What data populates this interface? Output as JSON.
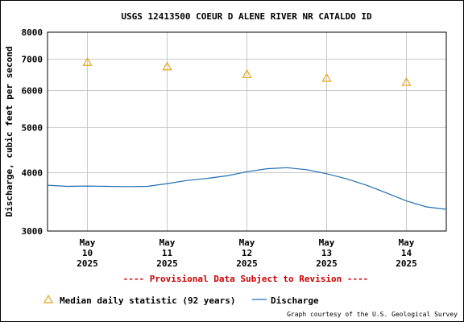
{
  "chart_data": {
    "type": "line",
    "title": "USGS 12413500 COEUR D ALENE RIVER NR CATALDO ID",
    "ylabel": "Discharge, cubic feet per second",
    "xlabel": "",
    "yscale": "log",
    "ylim": [
      3000,
      8000
    ],
    "y_ticks": [
      {
        "value": 3000,
        "label": "3000"
      },
      {
        "value": 4000,
        "label": "4000"
      },
      {
        "value": 5000,
        "label": "5000"
      },
      {
        "value": 6000,
        "label": "6000"
      },
      {
        "value": 7000,
        "label": "7000"
      },
      {
        "value": 8000,
        "label": "8000"
      }
    ],
    "x_ticks": [
      {
        "date": "2025-05-10",
        "month": "May",
        "day": "10",
        "year": "2025"
      },
      {
        "date": "2025-05-11",
        "month": "May",
        "day": "11",
        "year": "2025"
      },
      {
        "date": "2025-05-12",
        "month": "May",
        "day": "12",
        "year": "2025"
      },
      {
        "date": "2025-05-13",
        "month": "May",
        "day": "13",
        "year": "2025"
      },
      {
        "date": "2025-05-14",
        "month": "May",
        "day": "14",
        "year": "2025"
      }
    ],
    "xlim": [
      "2025-05-09 12:00",
      "2025-05-14 12:00"
    ],
    "grid": true,
    "series": [
      {
        "name": "Discharge",
        "color": "#1f6fb2",
        "points": [
          [
            "2025-05-09 12:00",
            3760
          ],
          [
            "2025-05-09 18:00",
            3740
          ],
          [
            "2025-05-10 00:00",
            3745
          ],
          [
            "2025-05-10 06:00",
            3740
          ],
          [
            "2025-05-10 12:00",
            3735
          ],
          [
            "2025-05-10 18:00",
            3740
          ],
          [
            "2025-05-11 00:00",
            3790
          ],
          [
            "2025-05-11 06:00",
            3850
          ],
          [
            "2025-05-11 12:00",
            3890
          ],
          [
            "2025-05-11 18:00",
            3940
          ],
          [
            "2025-05-12 00:00",
            4020
          ],
          [
            "2025-05-12 06:00",
            4080
          ],
          [
            "2025-05-12 12:00",
            4100
          ],
          [
            "2025-05-12 18:00",
            4060
          ],
          [
            "2025-05-13 00:00",
            3980
          ],
          [
            "2025-05-13 06:00",
            3880
          ],
          [
            "2025-05-13 12:00",
            3760
          ],
          [
            "2025-05-13 18:00",
            3620
          ],
          [
            "2025-05-14 00:00",
            3480
          ],
          [
            "2025-05-14 06:00",
            3380
          ],
          [
            "2025-05-14 12:00",
            3340
          ]
        ]
      },
      {
        "name": "Median daily statistic (92 years)",
        "marker": "triangle",
        "color": "#e8a317",
        "points": [
          [
            "2025-05-10 00:00",
            6900
          ],
          [
            "2025-05-11 00:00",
            6750
          ],
          [
            "2025-05-12 00:00",
            6500
          ],
          [
            "2025-05-13 00:00",
            6380
          ],
          [
            "2025-05-14 00:00",
            6250
          ]
        ]
      }
    ],
    "legend_position": "bottom",
    "notice": "---- Provisional Data Subject to Revision ----",
    "notice_color": "#cc0000",
    "credit": "Graph courtesy of the U.S. Geological Survey"
  }
}
